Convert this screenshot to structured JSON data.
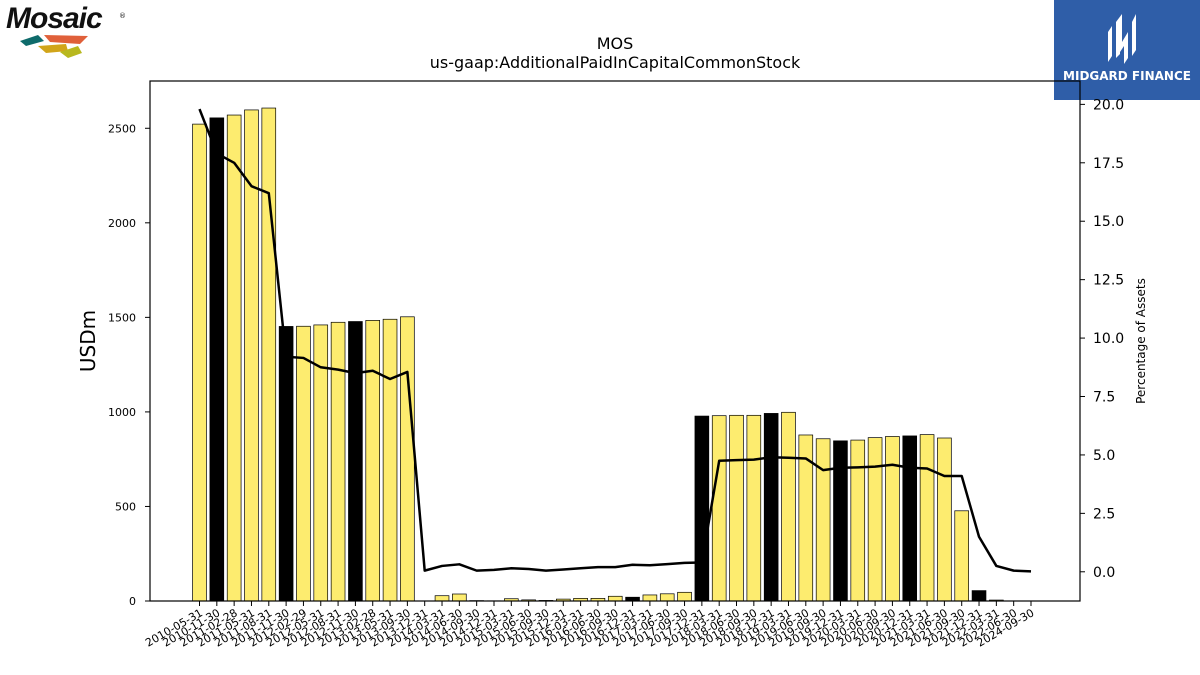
{
  "logo": {
    "company": "Mosaic",
    "trademark": "®"
  },
  "brand": {
    "name": "MIDGARD FINANCE"
  },
  "colors": {
    "bar_default": "#fdec6f",
    "bar_highlight": "#000000",
    "line": "#000000"
  },
  "chart_data": {
    "type": "bar",
    "title": "MOS",
    "subtitle": "us-gaap:AdditionalPaidInCapitalCommonStock",
    "ylabel": "USDm",
    "y2label": "Percentage of Assets",
    "ylim": [
      0,
      2750
    ],
    "y2lim": [
      -1.25,
      21.0
    ],
    "yticks": [
      0,
      500,
      1000,
      1500,
      2000,
      2500
    ],
    "y2ticks": [
      "0.0",
      "2.5",
      "5.0",
      "7.5",
      "10.0",
      "12.5",
      "15.0",
      "17.5",
      "20.0"
    ],
    "categories": [
      "2010-05-31",
      "2010-11-30",
      "2011-02-28",
      "2011-05-31",
      "2011-08-31",
      "2011-11-30",
      "2012-02-29",
      "2012-05-31",
      "2012-08-31",
      "2012-11-30",
      "2013-02-28",
      "2013-05-31",
      "2013-09-30",
      "2013-12-31",
      "2014-03-31",
      "2014-06-30",
      "2014-09-30",
      "2014-12-31",
      "2015-03-31",
      "2015-06-30",
      "2015-09-30",
      "2015-12-31",
      "2016-03-31",
      "2016-06-30",
      "2016-09-30",
      "2016-12-31",
      "2017-03-31",
      "2017-06-30",
      "2017-09-30",
      "2017-12-31",
      "2018-03-31",
      "2018-06-30",
      "2018-09-30",
      "2018-12-31",
      "2019-03-31",
      "2019-06-30",
      "2019-09-30",
      "2019-12-31",
      "2020-03-31",
      "2020-06-30",
      "2020-09-30",
      "2020-12-31",
      "2021-03-31",
      "2021-06-30",
      "2021-09-30",
      "2021-12-31",
      "2022-03-31",
      "2022-06-30",
      "2024-09-30"
    ],
    "series": [
      {
        "type": "bar",
        "values": [
          2522,
          2555,
          2570,
          2597,
          2607,
          1452,
          1453,
          1460,
          1474,
          1478,
          1484,
          1490,
          1503,
          0,
          28,
          37,
          2,
          1,
          12,
          6,
          3,
          10,
          14,
          14,
          25,
          20,
          32,
          38,
          46,
          978,
          980,
          982,
          982,
          992,
          998,
          878,
          858,
          847,
          851,
          864,
          870,
          873,
          880,
          862,
          477,
          55,
          5,
          0,
          0
        ],
        "highlight": [
          1,
          5,
          9,
          25,
          29,
          33,
          37,
          41,
          45
        ]
      },
      {
        "type": "line",
        "values": [
          19.8,
          17.9,
          17.5,
          16.5,
          16.2,
          9.2,
          9.15,
          8.75,
          8.65,
          8.5,
          8.6,
          8.25,
          8.55,
          0.05,
          0.25,
          0.32,
          0.05,
          0.08,
          0.15,
          0.12,
          0.05,
          0.1,
          0.15,
          0.2,
          0.2,
          0.3,
          0.28,
          0.33,
          0.38,
          0.4,
          4.75,
          4.78,
          4.8,
          4.9,
          4.88,
          4.85,
          4.35,
          4.45,
          4.47,
          4.5,
          4.58,
          4.45,
          4.42,
          4.1,
          4.1,
          1.5,
          0.25,
          0.05,
          0.02
        ]
      }
    ]
  }
}
